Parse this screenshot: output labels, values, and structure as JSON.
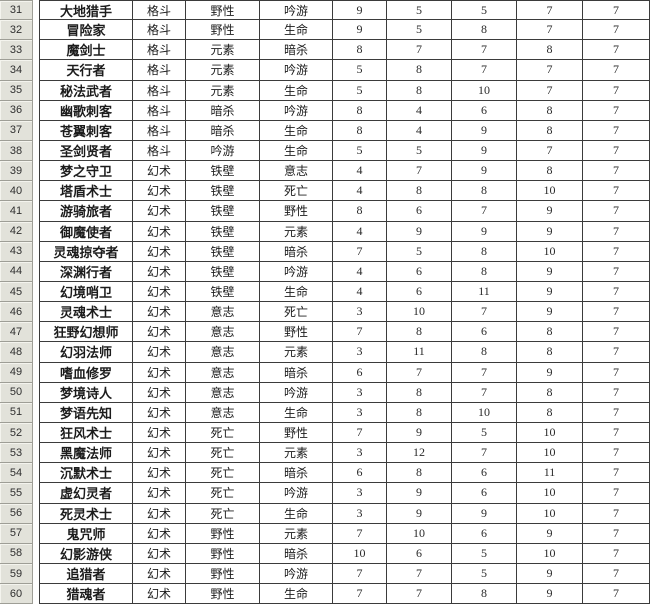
{
  "colors": {
    "row_header_bg": "#e2e2da",
    "row_header_border": "#9e9e96",
    "grid_border": "#3b3b3b",
    "cell_bg": "#ffffff",
    "text": "#1c1c1c"
  },
  "spreadsheet": {
    "first_visible_row": 31,
    "last_visible_row": 60,
    "rows": [
      {
        "row": "31",
        "cells": [
          "大地猎手",
          "格斗",
          "野性",
          "吟游",
          "9",
          "5",
          "5",
          "7",
          "7"
        ]
      },
      {
        "row": "32",
        "cells": [
          "冒险家",
          "格斗",
          "野性",
          "生命",
          "9",
          "5",
          "8",
          "7",
          "7"
        ]
      },
      {
        "row": "33",
        "cells": [
          "魔剑士",
          "格斗",
          "元素",
          "暗杀",
          "8",
          "7",
          "7",
          "8",
          "7"
        ]
      },
      {
        "row": "34",
        "cells": [
          "天行者",
          "格斗",
          "元素",
          "吟游",
          "5",
          "8",
          "7",
          "7",
          "7"
        ]
      },
      {
        "row": "35",
        "cells": [
          "秘法武者",
          "格斗",
          "元素",
          "生命",
          "5",
          "8",
          "10",
          "7",
          "7"
        ]
      },
      {
        "row": "36",
        "cells": [
          "幽歌刺客",
          "格斗",
          "暗杀",
          "吟游",
          "8",
          "4",
          "6",
          "8",
          "7"
        ]
      },
      {
        "row": "37",
        "cells": [
          "苍翼刺客",
          "格斗",
          "暗杀",
          "生命",
          "8",
          "4",
          "9",
          "8",
          "7"
        ]
      },
      {
        "row": "38",
        "cells": [
          "圣剑贤者",
          "格斗",
          "吟游",
          "生命",
          "5",
          "5",
          "9",
          "7",
          "7"
        ]
      },
      {
        "row": "39",
        "cells": [
          "梦之守卫",
          "幻术",
          "铁壁",
          "意志",
          "4",
          "7",
          "9",
          "8",
          "7"
        ]
      },
      {
        "row": "40",
        "cells": [
          "塔盾术士",
          "幻术",
          "铁壁",
          "死亡",
          "4",
          "8",
          "8",
          "10",
          "7"
        ]
      },
      {
        "row": "41",
        "cells": [
          "游骑旅者",
          "幻术",
          "铁壁",
          "野性",
          "8",
          "6",
          "7",
          "9",
          "7"
        ]
      },
      {
        "row": "42",
        "cells": [
          "御魔使者",
          "幻术",
          "铁壁",
          "元素",
          "4",
          "9",
          "9",
          "9",
          "7"
        ]
      },
      {
        "row": "43",
        "cells": [
          "灵魂掠夺者",
          "幻术",
          "铁壁",
          "暗杀",
          "7",
          "5",
          "8",
          "10",
          "7"
        ]
      },
      {
        "row": "44",
        "cells": [
          "深渊行者",
          "幻术",
          "铁壁",
          "吟游",
          "4",
          "6",
          "8",
          "9",
          "7"
        ]
      },
      {
        "row": "45",
        "cells": [
          "幻境哨卫",
          "幻术",
          "铁壁",
          "生命",
          "4",
          "6",
          "11",
          "9",
          "7"
        ]
      },
      {
        "row": "46",
        "cells": [
          "灵魂术士",
          "幻术",
          "意志",
          "死亡",
          "3",
          "10",
          "7",
          "9",
          "7"
        ]
      },
      {
        "row": "47",
        "cells": [
          "狂野幻想师",
          "幻术",
          "意志",
          "野性",
          "7",
          "8",
          "6",
          "8",
          "7"
        ]
      },
      {
        "row": "48",
        "cells": [
          "幻羽法师",
          "幻术",
          "意志",
          "元素",
          "3",
          "11",
          "8",
          "8",
          "7"
        ]
      },
      {
        "row": "49",
        "cells": [
          "嗜血修罗",
          "幻术",
          "意志",
          "暗杀",
          "6",
          "7",
          "7",
          "9",
          "7"
        ]
      },
      {
        "row": "50",
        "cells": [
          "梦境诗人",
          "幻术",
          "意志",
          "吟游",
          "3",
          "8",
          "7",
          "8",
          "7"
        ]
      },
      {
        "row": "51",
        "cells": [
          "梦语先知",
          "幻术",
          "意志",
          "生命",
          "3",
          "8",
          "10",
          "8",
          "7"
        ]
      },
      {
        "row": "52",
        "cells": [
          "狂风术士",
          "幻术",
          "死亡",
          "野性",
          "7",
          "9",
          "5",
          "10",
          "7"
        ]
      },
      {
        "row": "53",
        "cells": [
          "黑魔法师",
          "幻术",
          "死亡",
          "元素",
          "3",
          "12",
          "7",
          "10",
          "7"
        ]
      },
      {
        "row": "54",
        "cells": [
          "沉默术士",
          "幻术",
          "死亡",
          "暗杀",
          "6",
          "8",
          "6",
          "11",
          "7"
        ]
      },
      {
        "row": "55",
        "cells": [
          "虚幻灵者",
          "幻术",
          "死亡",
          "吟游",
          "3",
          "9",
          "6",
          "10",
          "7"
        ]
      },
      {
        "row": "56",
        "cells": [
          "死灵术士",
          "幻术",
          "死亡",
          "生命",
          "3",
          "9",
          "9",
          "10",
          "7"
        ]
      },
      {
        "row": "57",
        "cells": [
          "鬼咒师",
          "幻术",
          "野性",
          "元素",
          "7",
          "10",
          "6",
          "9",
          "7"
        ]
      },
      {
        "row": "58",
        "cells": [
          "幻影游侠",
          "幻术",
          "野性",
          "暗杀",
          "10",
          "6",
          "5",
          "10",
          "7"
        ]
      },
      {
        "row": "59",
        "cells": [
          "追猎者",
          "幻术",
          "野性",
          "吟游",
          "7",
          "7",
          "5",
          "9",
          "7"
        ]
      },
      {
        "row": "60",
        "cells": [
          "猎魂者",
          "幻术",
          "野性",
          "生命",
          "7",
          "7",
          "8",
          "9",
          "7"
        ]
      }
    ]
  }
}
